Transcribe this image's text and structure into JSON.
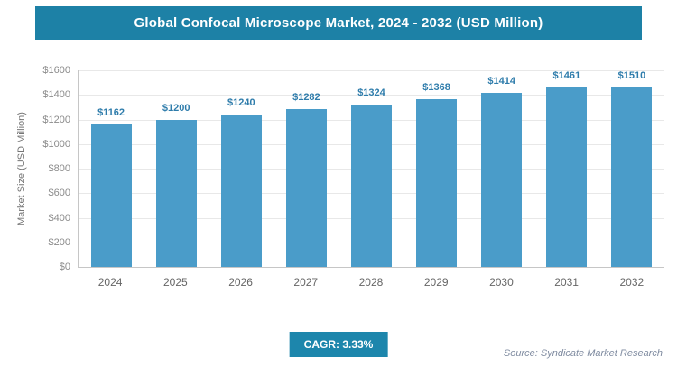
{
  "header": {
    "title": "Global Confocal Microscope Market, 2024 - 2032 (USD Million)"
  },
  "chart_data": {
    "type": "bar",
    "title": "Global Confocal Microscope Market, 2024 - 2032 (USD Million)",
    "categories": [
      "2024",
      "2025",
      "2026",
      "2027",
      "2028",
      "2029",
      "2030",
      "2031",
      "2032"
    ],
    "values": [
      1162,
      1200,
      1240,
      1282,
      1324,
      1368,
      1414,
      1461,
      1510
    ],
    "value_labels": [
      "$1162",
      "$1200",
      "$1240",
      "$1282",
      "$1324",
      "$1368",
      "$1414",
      "$1461",
      "$1510"
    ],
    "ylabel": "Market Size (USD Million)",
    "xlabel": "",
    "ylim": [
      0,
      1600
    ],
    "ytick_step": 200,
    "yticks": [
      "$1600",
      "$1400",
      "$1200",
      "$1000",
      "$800",
      "$600",
      "$400",
      "$200",
      "$0"
    ],
    "grid": true,
    "legend": false,
    "bar_color": "#4a9cc9",
    "value_label_color": "#2e7cab"
  },
  "footer": {
    "cagr_label": "CAGR: 3.33%",
    "source": "Source: Syndicate Market Research"
  },
  "colors": {
    "header_bg": "#1d81a6",
    "cagr_bg": "#1d86ac",
    "axis_text": "#8b8b8b"
  }
}
